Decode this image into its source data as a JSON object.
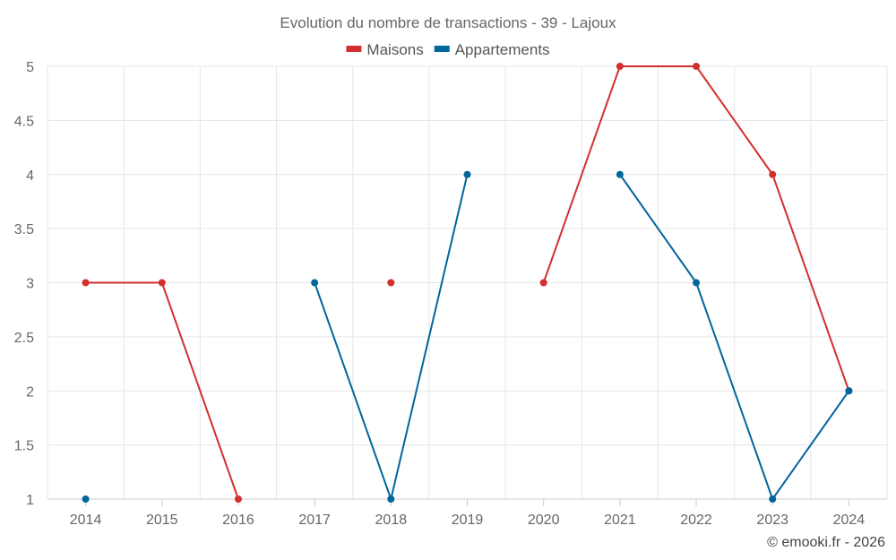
{
  "chart_data": {
    "type": "line",
    "title": "Evolution du nombre de transactions - 39 - Lajoux",
    "categories": [
      "2014",
      "2015",
      "2016",
      "2017",
      "2018",
      "2019",
      "2020",
      "2021",
      "2022",
      "2023",
      "2024"
    ],
    "ylim": [
      1,
      5
    ],
    "yticks": [
      "1",
      "1.5",
      "2",
      "2.5",
      "3",
      "3.5",
      "4",
      "4.5",
      "5"
    ],
    "grid": true,
    "legend_position": "top-center",
    "series": [
      {
        "name": "Maisons",
        "color": "#d32f2f",
        "values": [
          3,
          3,
          1,
          null,
          3,
          null,
          3,
          5,
          5,
          4,
          2
        ]
      },
      {
        "name": "Appartements",
        "color": "#01669b",
        "values": [
          1,
          null,
          null,
          3,
          1,
          4,
          null,
          4,
          3,
          1,
          2
        ]
      }
    ]
  },
  "footer": {
    "credit": "© emooki.fr - 2026"
  }
}
